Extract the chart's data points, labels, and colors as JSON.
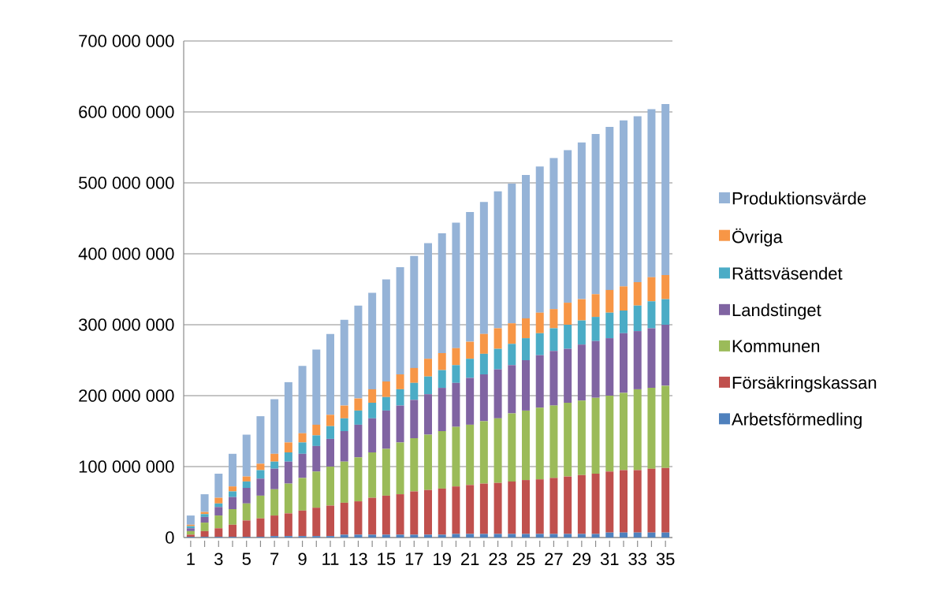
{
  "chart_data": {
    "type": "bar",
    "stacked": true,
    "grid": "y",
    "legend": "right",
    "categories": [
      "1",
      null,
      "3",
      null,
      "5",
      null,
      "7",
      null,
      "9",
      null,
      "11",
      null,
      "13",
      null,
      "15",
      null,
      "17",
      null,
      "19",
      null,
      "21",
      null,
      "23",
      null,
      "25",
      null,
      "27",
      null,
      "29",
      null,
      "31",
      null,
      "33",
      null,
      "35"
    ],
    "ylim": [
      0,
      700000000
    ],
    "yticks": [
      0,
      {
        "value": 100000000,
        "label": "100 000 000"
      },
      {
        "value": 200000000,
        "label": "200 000 000"
      },
      {
        "value": 300000000,
        "label": "300 000 000"
      },
      {
        "value": 400000000,
        "label": "400 000 000"
      },
      {
        "value": 500000000,
        "label": "500 000 000"
      },
      {
        "value": 600000000,
        "label": "600 000 000"
      },
      {
        "value": 700000000,
        "label": "700 000 000"
      }
    ],
    "series": [
      {
        "name": "Arbetsförmedling",
        "color": "#4f81bd",
        "values": [
          1000000.0,
          1000000.0,
          1000000.0,
          1000000.0,
          1000000.0,
          1000000.0,
          2000000.0,
          2000000.0,
          2000000.0,
          2000000.0,
          2000000.0,
          4000000.0,
          4000000.0,
          4000000.0,
          4000000.0,
          4000000.0,
          4000000.0,
          4000000.0,
          4000000.0,
          5000000.0,
          5000000.0,
          5000000.0,
          5000000.0,
          5000000.0,
          5000000.0,
          5000000.0,
          5000000.0,
          5000000.0,
          5000000.0,
          5000000.0,
          7000000.0,
          7000000.0,
          7000000.0,
          7000000.0,
          7000000.0
        ]
      },
      {
        "name": "Försäkringskassan",
        "color": "#c0504d",
        "values": [
          3000000.0,
          8000000.0,
          12000000.0,
          17000000.0,
          23000000.0,
          26000000.0,
          29000000.0,
          32000000.0,
          36000000.0,
          40000000.0,
          43000000.0,
          45000000.0,
          47000000.0,
          52000000.0,
          55000000.0,
          57000000.0,
          61000000.0,
          63000000.0,
          65000000.0,
          67000000.0,
          69000000.0,
          71000000.0,
          72000000.0,
          74000000.0,
          76000000.0,
          77000000.0,
          79000000.0,
          81000000.0,
          83000000.0,
          85000000.0,
          86000000.0,
          88000000.0,
          88000000.0,
          90000000.0,
          91000000.0
        ]
      },
      {
        "name": "Kommunen",
        "color": "#9bbb59",
        "values": [
          5000000.0,
          12000000.0,
          18000000.0,
          22000000.0,
          24000000.0,
          32000000.0,
          37000000.0,
          42000000.0,
          46000000.0,
          51000000.0,
          55000000.0,
          58000000.0,
          62000000.0,
          64000000.0,
          66000000.0,
          73000000.0,
          75000000.0,
          78000000.0,
          81000000.0,
          84000000.0,
          85000000.0,
          88000000.0,
          91000000.0,
          96000000.0,
          98000000.0,
          101000000.0,
          102000000.0,
          104000000.0,
          105000000.0,
          107000000.0,
          107000000.0,
          109000000.0,
          114000000.0,
          114000000.0,
          116000000.0
        ]
      },
      {
        "name": "Landstinget",
        "color": "#8064a2",
        "values": [
          4000000.0,
          8000000.0,
          12000000.0,
          17000000.0,
          22000000.0,
          24000000.0,
          29000000.0,
          31000000.0,
          34000000.0,
          36000000.0,
          39000000.0,
          43000000.0,
          46000000.0,
          48000000.0,
          54000000.0,
          52000000.0,
          54000000.0,
          57000000.0,
          61000000.0,
          62000000.0,
          66000000.0,
          66000000.0,
          69000000.0,
          68000000.0,
          71000000.0,
          74000000.0,
          77000000.0,
          76000000.0,
          79000000.0,
          80000000.0,
          81000000.0,
          84000000.0,
          82000000.0,
          84000000.0,
          86000000.0
        ]
      },
      {
        "name": "Rättsväsendet",
        "color": "#4bacc6",
        "values": [
          3000000.0,
          4000000.0,
          5000000.0,
          8000000.0,
          9000000.0,
          12000000.0,
          10000000.0,
          13000000.0,
          16000000.0,
          15000000.0,
          18000000.0,
          18000000.0,
          20000000.0,
          22000000.0,
          19000000.0,
          23000000.0,
          24000000.0,
          25000000.0,
          25000000.0,
          25000000.0,
          27000000.0,
          29000000.0,
          29000000.0,
          30000000.0,
          31000000.0,
          31000000.0,
          32000000.0,
          34000000.0,
          34000000.0,
          34000000.0,
          36000000.0,
          32000000.0,
          36000000.0,
          38000000.0,
          36000000.0
        ]
      },
      {
        "name": "Övriga",
        "color": "#f79646",
        "values": [
          2000000.0,
          3000000.0,
          8000000.0,
          7000000.0,
          7000000.0,
          9000000.0,
          11000000.0,
          14000000.0,
          13000000.0,
          15000000.0,
          16000000.0,
          18000000.0,
          17000000.0,
          19000000.0,
          22000000.0,
          21000000.0,
          21000000.0,
          25000000.0,
          24000000.0,
          24000000.0,
          24000000.0,
          28000000.0,
          29000000.0,
          29000000.0,
          28000000.0,
          29000000.0,
          27000000.0,
          31000000.0,
          30000000.0,
          32000000.0,
          32000000.0,
          34000000.0,
          33000000.0,
          34000000.0,
          34000000.0
        ]
      },
      {
        "name": "Produktionsvärde",
        "color": "#95b3d7",
        "values": [
          13000000.0,
          25000000.0,
          34000000.0,
          46000000.0,
          59000000.0,
          67000000.0,
          77000000.0,
          85000000.0,
          95000000.0,
          106000000.0,
          114000000.0,
          121000000.0,
          131000000.0,
          136000000.0,
          144000000.0,
          151000000.0,
          158000000.0,
          163000000.0,
          169000000.0,
          177000000.0,
          183000000.0,
          186000000.0,
          193000000.0,
          197000000.0,
          202000000.0,
          206000000.0,
          213000000.0,
          215000000.0,
          221000000.0,
          226000000.0,
          230000000.0,
          234000000.0,
          234000000.0,
          237000000.0,
          241000000.0
        ]
      }
    ]
  }
}
